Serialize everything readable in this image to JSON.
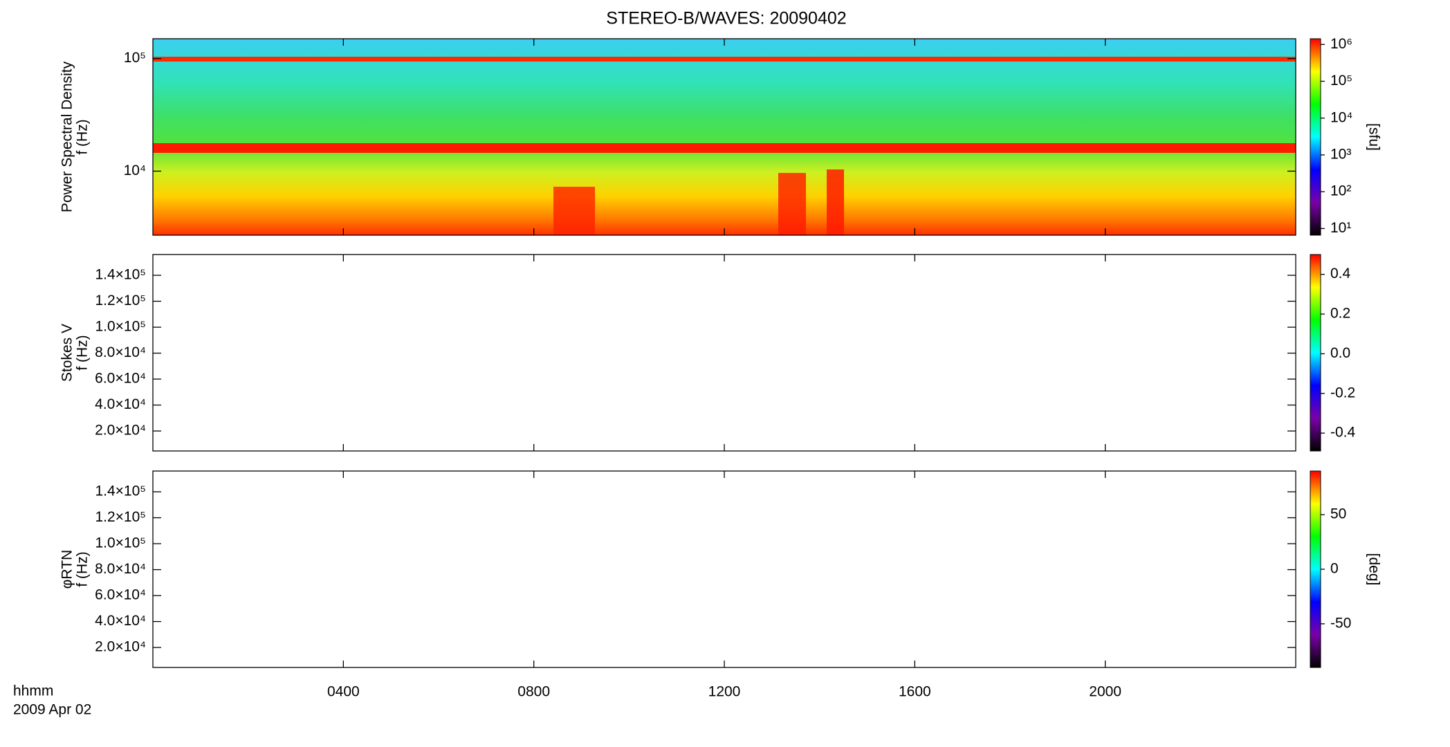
{
  "chart_data": [
    {
      "type": "spectrogram",
      "title": "STEREO-B/WAVES: 20090402",
      "ylabel": [
        "Power Spectral Density",
        "f (Hz)"
      ],
      "xlim": [
        0,
        24
      ],
      "xticks": [
        4,
        8,
        12,
        16,
        20
      ],
      "ylim": [
        2700,
        150000
      ],
      "log_y": true,
      "yticks": [
        {
          "value": 10000,
          "label": "10⁴"
        },
        {
          "value": 100000,
          "label": "10⁵"
        }
      ],
      "colormap": [
        "#000000",
        "#7a00a8",
        "#0000ff",
        "#00ffff",
        "#00ff00",
        "#ffff00",
        "#ff0000"
      ],
      "colorbar": {
        "label": "[sfu]",
        "log": true,
        "lim": [
          6.6,
          1430000
        ],
        "ticks": [
          {
            "value": 10,
            "label": "10¹"
          },
          {
            "value": 100,
            "label": "10²"
          },
          {
            "value": 1000,
            "label": "10³"
          },
          {
            "value": 10000,
            "label": "10⁴"
          },
          {
            "value": 100000,
            "label": "10⁵"
          },
          {
            "value": 1000000,
            "label": "10⁶"
          }
        ]
      }
    },
    {
      "type": "spectrogram",
      "ylabel": [
        "Stokes V",
        "f (Hz)"
      ],
      "xlim": [
        0,
        24
      ],
      "xticks": [
        4,
        8,
        12,
        16,
        20
      ],
      "ylim": [
        4600,
        156000
      ],
      "yticks": [
        {
          "value": 20000,
          "label": "2.0×10⁴"
        },
        {
          "value": 40000,
          "label": "4.0×10⁴"
        },
        {
          "value": 60000,
          "label": "6.0×10⁴"
        },
        {
          "value": 80000,
          "label": "8.0×10⁴"
        },
        {
          "value": 100000,
          "label": "1.0×10⁵"
        },
        {
          "value": 120000,
          "label": "1.2×10⁵"
        },
        {
          "value": 140000,
          "label": "1.4×10⁵"
        }
      ],
      "colormap": [
        "#000000",
        "#7a00a8",
        "#0000ff",
        "#00ffff",
        "#00ff00",
        "#ffff00",
        "#ff0000"
      ],
      "colorbar": {
        "lim": [
          -0.49,
          0.5
        ],
        "ticks": [
          -0.4,
          -0.2,
          {
            "value": 0,
            "label": "0.0"
          },
          0.2,
          0.4
        ]
      }
    },
    {
      "type": "spectrogram",
      "ylabel": [
        "φRTN",
        "f (Hz)"
      ],
      "xlim": [
        0,
        24
      ],
      "xticks": [
        {
          "value": 4,
          "label": "0400"
        },
        {
          "value": 8,
          "label": "0800"
        },
        {
          "value": 12,
          "label": "1200"
        },
        {
          "value": 16,
          "label": "1600"
        },
        {
          "value": 20,
          "label": "2000"
        }
      ],
      "xlabel": [
        "hhmm",
        "2009 Apr 02"
      ],
      "ylim": [
        4600,
        156000
      ],
      "yticks": [
        {
          "value": 20000,
          "label": "2.0×10⁴"
        },
        {
          "value": 40000,
          "label": "4.0×10⁴"
        },
        {
          "value": 60000,
          "label": "6.0×10⁴"
        },
        {
          "value": 80000,
          "label": "8.0×10⁴"
        },
        {
          "value": 100000,
          "label": "1.0×10⁵"
        },
        {
          "value": 120000,
          "label": "1.2×10⁵"
        },
        {
          "value": 140000,
          "label": "1.4×10⁵"
        }
      ],
      "colormap": [
        "#000000",
        "#7a00a8",
        "#0000ff",
        "#00ffff",
        "#00ff00",
        "#ffff00",
        "#ff0000"
      ],
      "colorbar": {
        "label": "[deg]",
        "lim": [
          -90,
          90
        ],
        "ticks": [
          -50,
          0,
          50
        ]
      }
    }
  ]
}
